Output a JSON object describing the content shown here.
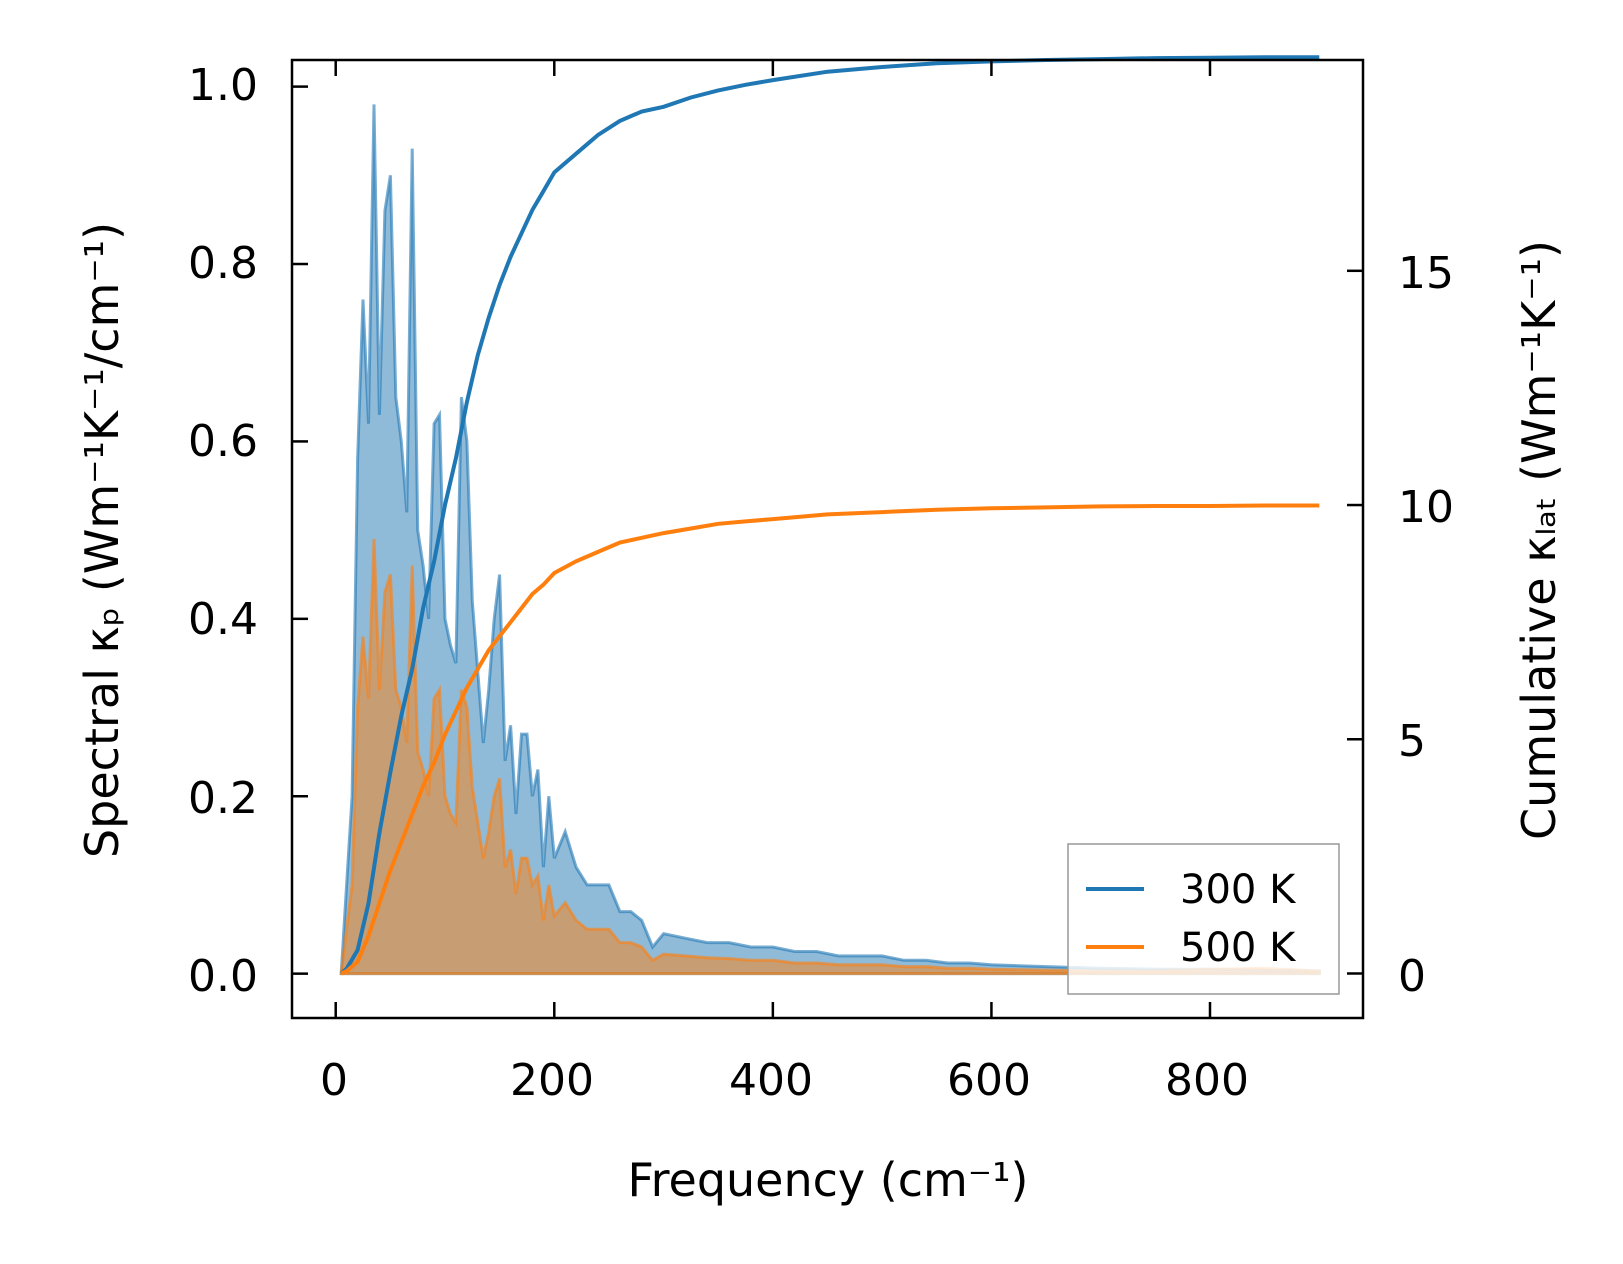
{
  "chart_data": {
    "type": "line",
    "xlabel": "Frequency (cm⁻¹)",
    "ylabel_left": "Spectral κₚ (Wm⁻¹K⁻¹/cm⁻¹)",
    "ylabel_right": "Cumulative κₗₐₜ (Wm⁻¹K⁻¹)",
    "xlim": [
      -40,
      940
    ],
    "ylim_left": [
      -0.05,
      1.03
    ],
    "ylim_right": [
      -0.95,
      19.5
    ],
    "xticks": [
      "0",
      "200",
      "400",
      "600",
      "800"
    ],
    "yticks_left": [
      "0.0",
      "0.2",
      "0.4",
      "0.6",
      "0.8",
      "1.0"
    ],
    "yticks_right": [
      "0",
      "5",
      "10",
      "15"
    ],
    "legend": {
      "position": "lower-right",
      "entries": [
        "300 K",
        "500 K"
      ]
    },
    "colors": {
      "s300": "#1f77b4",
      "s500": "#ff7f0e"
    },
    "spectral_x": [
      5,
      10,
      15,
      20,
      25,
      30,
      35,
      40,
      45,
      50,
      55,
      60,
      65,
      70,
      75,
      80,
      85,
      90,
      95,
      100,
      105,
      110,
      115,
      120,
      125,
      130,
      135,
      140,
      145,
      150,
      155,
      160,
      165,
      170,
      175,
      180,
      185,
      190,
      195,
      200,
      210,
      220,
      230,
      240,
      250,
      260,
      270,
      280,
      290,
      300,
      320,
      340,
      360,
      380,
      400,
      420,
      440,
      460,
      480,
      500,
      520,
      540,
      560,
      580,
      600,
      650,
      700,
      750,
      800,
      850,
      900
    ],
    "spectral_300": [
      0.0,
      0.1,
      0.2,
      0.58,
      0.76,
      0.62,
      0.98,
      0.63,
      0.86,
      0.9,
      0.65,
      0.6,
      0.52,
      0.93,
      0.5,
      0.46,
      0.4,
      0.62,
      0.63,
      0.4,
      0.37,
      0.35,
      0.65,
      0.6,
      0.42,
      0.34,
      0.26,
      0.32,
      0.4,
      0.45,
      0.24,
      0.28,
      0.18,
      0.27,
      0.27,
      0.2,
      0.23,
      0.12,
      0.2,
      0.13,
      0.16,
      0.12,
      0.1,
      0.1,
      0.1,
      0.07,
      0.07,
      0.06,
      0.03,
      0.045,
      0.04,
      0.035,
      0.035,
      0.03,
      0.03,
      0.025,
      0.025,
      0.02,
      0.02,
      0.02,
      0.015,
      0.015,
      0.012,
      0.012,
      0.01,
      0.008,
      0.006,
      0.005,
      0.005,
      0.004,
      0.003
    ],
    "spectral_500": [
      0.0,
      0.05,
      0.1,
      0.3,
      0.38,
      0.31,
      0.49,
      0.32,
      0.43,
      0.45,
      0.32,
      0.3,
      0.26,
      0.46,
      0.25,
      0.23,
      0.2,
      0.31,
      0.32,
      0.2,
      0.18,
      0.17,
      0.32,
      0.3,
      0.21,
      0.17,
      0.13,
      0.16,
      0.2,
      0.22,
      0.12,
      0.14,
      0.09,
      0.13,
      0.13,
      0.1,
      0.11,
      0.06,
      0.1,
      0.065,
      0.08,
      0.06,
      0.05,
      0.05,
      0.05,
      0.035,
      0.035,
      0.03,
      0.015,
      0.022,
      0.02,
      0.018,
      0.017,
      0.015,
      0.015,
      0.012,
      0.012,
      0.01,
      0.01,
      0.01,
      0.008,
      0.008,
      0.006,
      0.006,
      0.005,
      0.004,
      0.003,
      0.003,
      0.005,
      0.006,
      0.003
    ],
    "cumulative_x": [
      5,
      10,
      20,
      30,
      40,
      50,
      60,
      70,
      80,
      90,
      100,
      110,
      120,
      130,
      140,
      150,
      160,
      170,
      180,
      190,
      200,
      220,
      240,
      260,
      280,
      300,
      325,
      350,
      375,
      400,
      450,
      500,
      550,
      600,
      650,
      700,
      750,
      800,
      850,
      900
    ],
    "cumulative_300": [
      0.0,
      0.1,
      0.5,
      1.5,
      3.0,
      4.3,
      5.5,
      6.5,
      7.8,
      8.8,
      10.0,
      11.0,
      12.2,
      13.2,
      14.0,
      14.7,
      15.3,
      15.8,
      16.3,
      16.7,
      17.1,
      17.5,
      17.9,
      18.2,
      18.4,
      18.5,
      18.7,
      18.85,
      18.97,
      19.07,
      19.25,
      19.35,
      19.43,
      19.47,
      19.5,
      19.52,
      19.54,
      19.55,
      19.56,
      19.56
    ],
    "cumulative_500": [
      0.0,
      0.05,
      0.25,
      0.8,
      1.5,
      2.2,
      2.8,
      3.4,
      4.0,
      4.5,
      5.1,
      5.6,
      6.1,
      6.5,
      6.9,
      7.2,
      7.5,
      7.8,
      8.1,
      8.3,
      8.55,
      8.8,
      9.0,
      9.2,
      9.3,
      9.4,
      9.5,
      9.6,
      9.65,
      9.7,
      9.8,
      9.85,
      9.9,
      9.93,
      9.95,
      9.97,
      9.98,
      9.98,
      9.99,
      9.99
    ]
  }
}
